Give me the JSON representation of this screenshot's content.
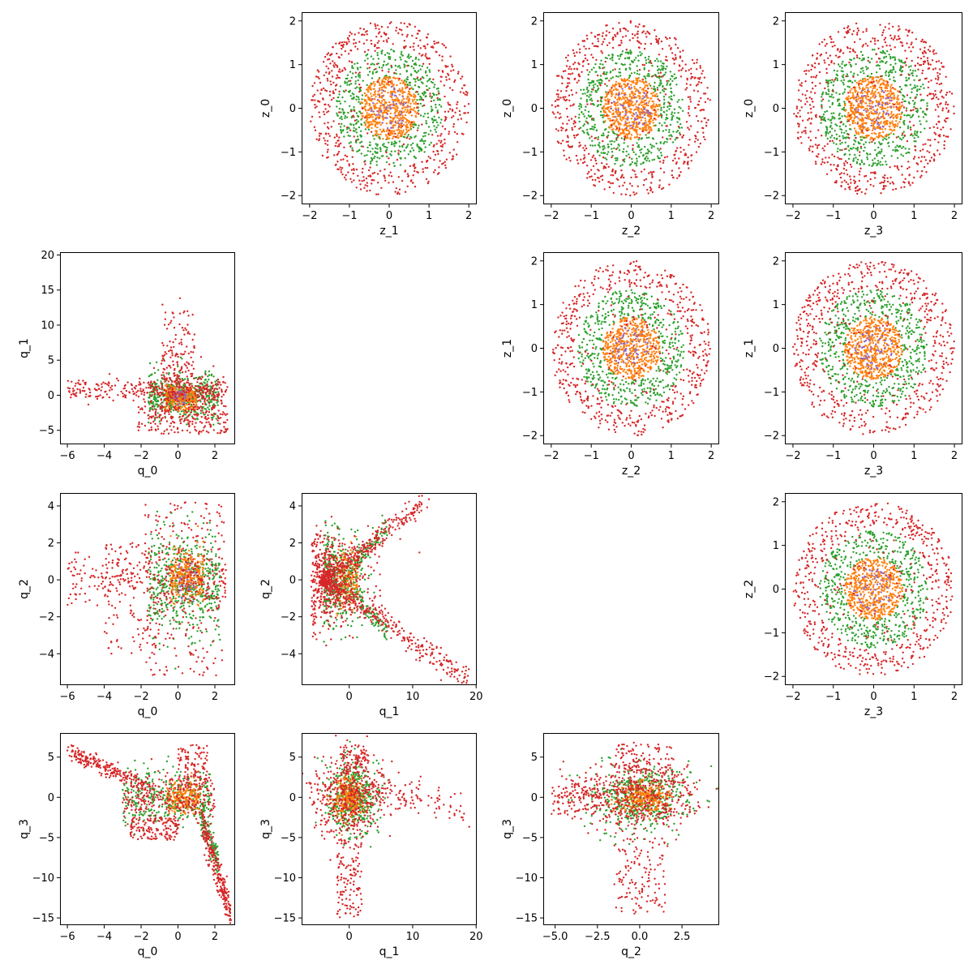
{
  "colors": {
    "outer": "#d62728",
    "middle": "#2ca02c",
    "inner": "#ff7f0e",
    "core": "#9467bd"
  },
  "chart_data": [
    {
      "id": "z0_z1",
      "type": "scatter",
      "pattern": "ring",
      "xlabel": "z_1",
      "ylabel": "z_0",
      "xlim": [
        -2.2,
        2.2
      ],
      "ylim": [
        -2.2,
        2.2
      ],
      "xticks": [
        -2,
        -1,
        0,
        1,
        2
      ],
      "yticks": [
        -2,
        -1,
        0,
        1,
        2
      ]
    },
    {
      "id": "z0_z2",
      "type": "scatter",
      "pattern": "ring",
      "xlabel": "z_2",
      "ylabel": "z_0",
      "xlim": [
        -2.2,
        2.2
      ],
      "ylim": [
        -2.2,
        2.2
      ],
      "xticks": [
        -2,
        -1,
        0,
        1,
        2
      ],
      "yticks": [
        -2,
        -1,
        0,
        1,
        2
      ]
    },
    {
      "id": "z0_z3",
      "type": "scatter",
      "pattern": "ring",
      "xlabel": "z_3",
      "ylabel": "z_0",
      "xlim": [
        -2.2,
        2.2
      ],
      "ylim": [
        -2.2,
        2.2
      ],
      "xticks": [
        -2,
        -1,
        0,
        1,
        2
      ],
      "yticks": [
        -2,
        -1,
        0,
        1,
        2
      ]
    },
    {
      "id": "q1_q0",
      "type": "scatter",
      "pattern": "q1q0",
      "xlabel": "q_0",
      "ylabel": "q_1",
      "xlim": [
        -6.4,
        3.1
      ],
      "ylim": [
        -7,
        20.4
      ],
      "xticks": [
        -6,
        -4,
        -2,
        0,
        2
      ],
      "yticks": [
        -5,
        0,
        5,
        10,
        15,
        20
      ]
    },
    {
      "id": "z1_z2",
      "type": "scatter",
      "pattern": "ring",
      "xlabel": "z_2",
      "ylabel": "z_1",
      "xlim": [
        -2.2,
        2.2
      ],
      "ylim": [
        -2.2,
        2.2
      ],
      "xticks": [
        -2,
        -1,
        0,
        1,
        2
      ],
      "yticks": [
        -2,
        -1,
        0,
        1,
        2
      ]
    },
    {
      "id": "z1_z3",
      "type": "scatter",
      "pattern": "ring",
      "xlabel": "z_3",
      "ylabel": "z_1",
      "xlim": [
        -2.2,
        2.2
      ],
      "ylim": [
        -2.2,
        2.2
      ],
      "xticks": [
        -2,
        -1,
        0,
        1,
        2
      ],
      "yticks": [
        -2,
        -1,
        0,
        1,
        2
      ]
    },
    {
      "id": "q2_q0",
      "type": "scatter",
      "pattern": "q2q0",
      "xlabel": "q_0",
      "ylabel": "q_2",
      "xlim": [
        -6.4,
        3.1
      ],
      "ylim": [
        -5.7,
        4.7
      ],
      "xticks": [
        -6,
        -4,
        -2,
        0,
        2
      ],
      "yticks": [
        -4,
        -2,
        0,
        2,
        4
      ]
    },
    {
      "id": "q2_q1",
      "type": "scatter",
      "pattern": "q2q1",
      "xlabel": "q_1",
      "ylabel": "q_2",
      "xlim": [
        -7.5,
        20.1
      ],
      "ylim": [
        -5.7,
        4.7
      ],
      "xticks": [
        0,
        10,
        20
      ],
      "yticks": [
        -4,
        -2,
        0,
        2,
        4
      ]
    },
    {
      "id": "z2_z3",
      "type": "scatter",
      "pattern": "ring",
      "xlabel": "z_3",
      "ylabel": "z_2",
      "xlim": [
        -2.2,
        2.2
      ],
      "ylim": [
        -2.2,
        2.2
      ],
      "xticks": [
        -2,
        -1,
        0,
        1,
        2
      ],
      "yticks": [
        -2,
        -1,
        0,
        1,
        2
      ]
    },
    {
      "id": "q3_q0",
      "type": "scatter",
      "pattern": "q3q0",
      "xlabel": "q_0",
      "ylabel": "q_3",
      "xlim": [
        -6.4,
        3.1
      ],
      "ylim": [
        -15.9,
        8
      ],
      "xticks": [
        -6,
        -4,
        -2,
        0,
        2
      ],
      "yticks": [
        -15,
        -10,
        -5,
        0,
        5
      ]
    },
    {
      "id": "q3_q1",
      "type": "scatter",
      "pattern": "q3q1",
      "xlabel": "q_1",
      "ylabel": "q_3",
      "xlim": [
        -7.5,
        20.1
      ],
      "ylim": [
        -15.9,
        8
      ],
      "xticks": [
        0,
        10,
        20
      ],
      "yticks": [
        -15,
        -10,
        -5,
        0,
        5
      ]
    },
    {
      "id": "q3_q2",
      "type": "scatter",
      "pattern": "q3q2",
      "xlabel": "q_2",
      "ylabel": "q_3",
      "xlim": [
        -5.7,
        4.7
      ],
      "ylim": [
        -15.9,
        8
      ],
      "xticks": [
        -5.0,
        -2.5,
        0.0,
        2.5
      ],
      "xtick_labels": [
        "−5.0",
        "−2.5",
        "0.0",
        "2.5"
      ],
      "yticks": [
        -15,
        -10,
        -5,
        0,
        5
      ]
    }
  ]
}
